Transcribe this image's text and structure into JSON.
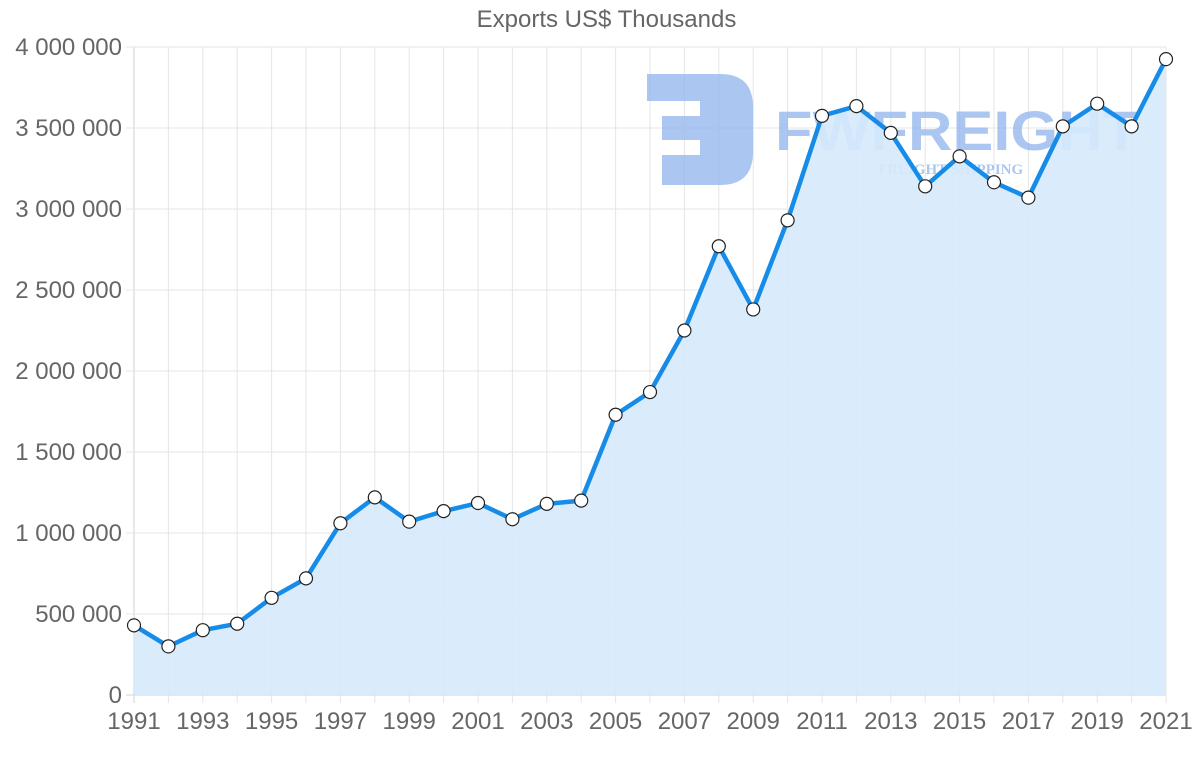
{
  "chart_data": {
    "type": "line",
    "title": "Exports US$ Thousands",
    "xlabel": "",
    "ylabel": "",
    "ylim": [
      0,
      4000000
    ],
    "grid": true,
    "legend": null,
    "y_ticks": [
      "0",
      "500 000",
      "1 000 000",
      "1 500 000",
      "2 000 000",
      "2 500 000",
      "3 000 000",
      "3 500 000",
      "4 000 000"
    ],
    "y_tick_values": [
      0,
      500000,
      1000000,
      1500000,
      2000000,
      2500000,
      3000000,
      3500000,
      4000000
    ],
    "x_ticks": [
      "1991",
      "1993",
      "1995",
      "1997",
      "1999",
      "2001",
      "2003",
      "2005",
      "2007",
      "2009",
      "2011",
      "2013",
      "2015",
      "2017",
      "2019",
      "2021"
    ],
    "x": [
      1991,
      1992,
      1993,
      1994,
      1995,
      1996,
      1997,
      1998,
      1999,
      2000,
      2001,
      2002,
      2003,
      2004,
      2005,
      2006,
      2007,
      2008,
      2009,
      2010,
      2011,
      2012,
      2013,
      2014,
      2015,
      2016,
      2017,
      2018,
      2019,
      2020,
      2021
    ],
    "series": [
      {
        "name": "Exports US$ Thousands",
        "values": [
          430000,
          300000,
          400000,
          440000,
          600000,
          720000,
          1060000,
          1220000,
          1070000,
          1135000,
          1185000,
          1085000,
          1180000,
          1200000,
          1730000,
          1870000,
          2250000,
          2770000,
          2380000,
          2930000,
          3575000,
          3635000,
          3470000,
          3140000,
          3325000,
          3165000,
          3070000,
          3510000,
          3650000,
          3510000,
          3925000
        ],
        "line_color": "#168ce8",
        "fill_color": "#d6eafc",
        "marker_fill": "#ffffff",
        "marker_stroke": "#222222"
      }
    ],
    "watermark": {
      "brand": "FWFREIGHT",
      "tagline": "FREIGHT SHIPPING",
      "color": "#8fb4ec"
    }
  }
}
